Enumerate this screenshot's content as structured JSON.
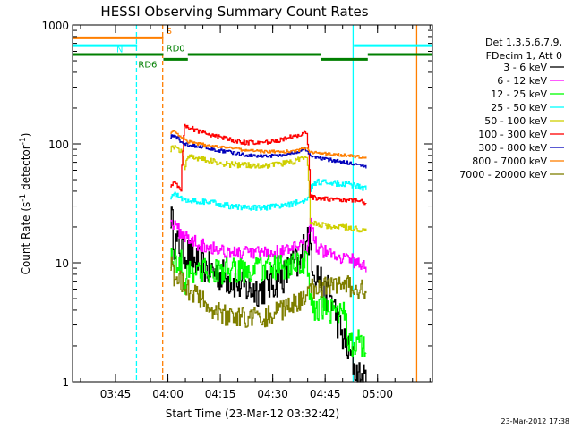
{
  "chart_data": {
    "type": "line",
    "title": "HESSI Observing Summary Count Rates",
    "xlabel": "Start Time (23-Mar-12 03:32:42)",
    "ylabel": "Count Rate (s",
    "ylabel_sup1": "-1",
    "ylabel_mid": " detector",
    "ylabel_sup2": "-1",
    "ylabel_end": ")",
    "x_unit": "minutes after 03:32:42",
    "xlim": [
      0,
      103
    ],
    "ylim": [
      1,
      1000
    ],
    "y_scale": "log",
    "x_tick_labels": [
      "03:45",
      "04:00",
      "04:15",
      "04:30",
      "04:45",
      "05:00"
    ],
    "x_tick_positions": [
      12.3,
      27.3,
      42.3,
      57.3,
      72.3,
      87.3
    ],
    "y_tick_labels": [
      "1",
      "10",
      "100",
      "1000"
    ],
    "y_tick_values": [
      1,
      10,
      100,
      1000
    ],
    "legend_header": [
      "Det 1,3,5,6,7,9,",
      "FDecim 1, Att 0"
    ],
    "legend_placement": "right, outside plot",
    "footer_date": "23-Mar-2012 17:38",
    "flags": [
      {
        "label": "S",
        "color": "#ff7f00"
      },
      {
        "label": "N",
        "color": "#00ffff"
      },
      {
        "label": "RD0",
        "color": "#007f00"
      },
      {
        "label": "RD6",
        "color": "#007f00"
      }
    ],
    "flag_segments": [
      {
        "color": "#ff7f00",
        "y": 780,
        "x": [
          0,
          26
        ]
      },
      {
        "color": "#00ffff",
        "y": 670,
        "x": [
          0,
          18.5
        ]
      },
      {
        "color": "#00ffff",
        "y": 670,
        "x": [
          80.5,
          103
        ]
      },
      {
        "color": "#007f00",
        "y": 565,
        "x": [
          0,
          26
        ]
      },
      {
        "color": "#007f00",
        "y": 515,
        "x": [
          26,
          33
        ]
      },
      {
        "color": "#007f00",
        "y": 565,
        "x": [
          33,
          71
        ]
      },
      {
        "color": "#007f00",
        "y": 515,
        "x": [
          71,
          84.5
        ]
      },
      {
        "color": "#007f00",
        "y": 565,
        "x": [
          84.5,
          103
        ]
      }
    ],
    "vlines": [
      {
        "x": 18.3,
        "color": "#00ffff",
        "style": "dashed"
      },
      {
        "x": 25.8,
        "color": "#ff7f00",
        "style": "dashed"
      },
      {
        "x": 80.3,
        "color": "#00ffff",
        "style": "solid"
      },
      {
        "x": 98.5,
        "color": "#ff7f00",
        "style": "solid"
      }
    ],
    "series": [
      {
        "name": "3 - 6 keV",
        "color": "#000000",
        "x": [
          28,
          29,
          31,
          33,
          35,
          38,
          42,
          46,
          50,
          54,
          58,
          61,
          63,
          65,
          67,
          69,
          70,
          71,
          72,
          73,
          74,
          75,
          76,
          77,
          78,
          79,
          80,
          81,
          82,
          83,
          84
        ],
        "values": [
          26,
          15,
          13,
          12,
          10,
          9,
          8,
          7,
          6,
          6,
          7,
          8,
          10,
          9,
          18,
          9,
          8,
          7,
          5,
          6,
          5,
          4,
          3,
          2.5,
          2,
          1.8,
          1.5,
          1.2,
          1.1,
          1,
          1
        ]
      },
      {
        "name": "6 - 12 keV",
        "color": "#ff00ff",
        "x": [
          28,
          29,
          31,
          33,
          36,
          40,
          44,
          48,
          52,
          56,
          60,
          63,
          67,
          68,
          70,
          74,
          78,
          82,
          84
        ],
        "values": [
          25,
          20,
          18,
          16,
          14.5,
          13.5,
          12.5,
          12,
          12,
          12,
          12.5,
          13,
          14,
          22,
          13,
          12,
          11,
          10,
          9
        ]
      },
      {
        "name": "12 - 25 keV",
        "color": "#00ff00",
        "x": [
          28,
          29,
          31,
          32,
          33,
          36,
          40,
          45,
          50,
          55,
          60,
          64,
          67,
          68,
          69,
          70,
          73,
          76,
          78,
          79,
          81,
          84
        ],
        "values": [
          11,
          10.5,
          10,
          6,
          9,
          8.5,
          8.5,
          8.5,
          8.5,
          9,
          9,
          9.5,
          10,
          4.5,
          4.2,
          4.1,
          4,
          4,
          3.5,
          2,
          2.2,
          2
        ]
      },
      {
        "name": "25 - 50 keV",
        "color": "#00ffff",
        "x": [
          28,
          29,
          31,
          32,
          33,
          36,
          40,
          45,
          50,
          55,
          60,
          64,
          67,
          68,
          70,
          74,
          78,
          82,
          84
        ],
        "values": [
          36,
          38,
          35,
          34,
          34,
          33,
          32,
          30,
          29,
          29,
          30,
          32,
          33,
          42,
          48,
          47,
          46,
          44,
          42
        ]
      },
      {
        "name": "50 - 100 keV",
        "color": "#cfcf00",
        "x": [
          28,
          29,
          31,
          32,
          33,
          36,
          40,
          45,
          50,
          55,
          60,
          64,
          67,
          68,
          70,
          74,
          78,
          82,
          84
        ],
        "values": [
          90,
          95,
          88,
          63,
          80,
          76,
          71,
          67,
          66,
          66,
          68,
          72,
          77,
          22,
          21,
          20,
          20,
          19,
          19
        ]
      },
      {
        "name": "100 - 300 keV",
        "color": "#ff0000",
        "x": [
          28,
          29,
          31,
          32,
          33,
          34,
          36,
          40,
          45,
          50,
          55,
          60,
          64,
          67,
          68,
          70,
          74,
          78,
          82,
          84
        ],
        "values": [
          45,
          48,
          40,
          140,
          140,
          135,
          128,
          118,
          108,
          102,
          103,
          108,
          118,
          125,
          36,
          35,
          34,
          34,
          33,
          32
        ]
      },
      {
        "name": "300 - 800 keV",
        "color": "#0000bb",
        "x": [
          28,
          29,
          31,
          32,
          33,
          36,
          40,
          45,
          50,
          55,
          60,
          64,
          67,
          68,
          70,
          74,
          78,
          82,
          84
        ],
        "values": [
          115,
          118,
          105,
          100,
          98,
          95,
          90,
          85,
          80,
          79,
          81,
          86,
          90,
          80,
          76,
          73,
          70,
          66,
          63
        ]
      },
      {
        "name": "800 - 7000 keV",
        "color": "#ff7f00",
        "x": [
          28,
          29,
          31,
          32,
          33,
          36,
          40,
          45,
          50,
          55,
          60,
          64,
          67,
          68,
          70,
          74,
          78,
          82,
          84
        ],
        "values": [
          125,
          128,
          115,
          110,
          105,
          100,
          96,
          92,
          88,
          86,
          86,
          88,
          92,
          85,
          84,
          82,
          80,
          78,
          76
        ]
      },
      {
        "name": "7000 - 20000 keV",
        "color": "#7f7f00",
        "x": [
          28,
          29,
          31,
          32,
          33,
          36,
          40,
          45,
          50,
          55,
          60,
          64,
          67,
          68,
          70,
          74,
          78,
          82,
          84
        ],
        "values": [
          10,
          7.5,
          7,
          7,
          6,
          5,
          4,
          3.5,
          3.5,
          3.5,
          4,
          4.5,
          5,
          6,
          6,
          6.5,
          6.5,
          6,
          6
        ]
      }
    ]
  }
}
